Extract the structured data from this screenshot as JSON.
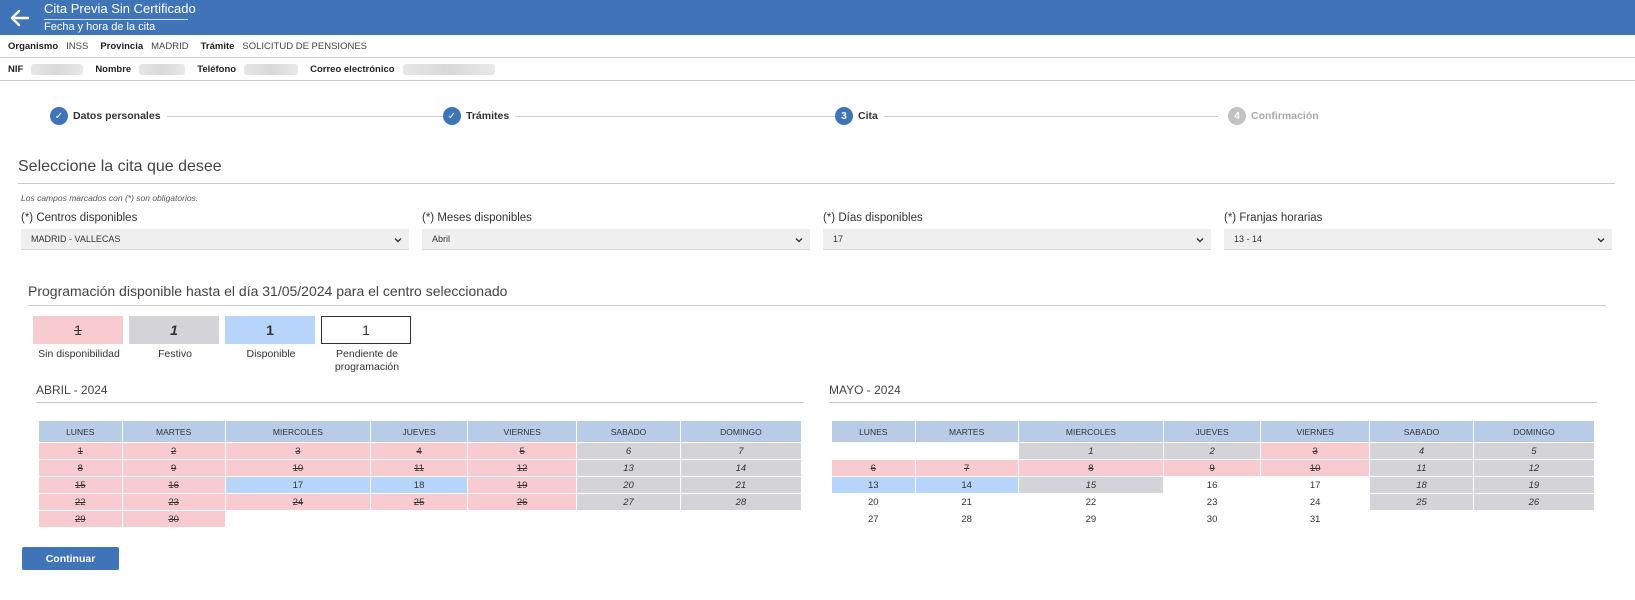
{
  "header": {
    "title": "Cita Previa Sin Certificado",
    "subtitle": "Fecha y hora de la cita"
  },
  "info1": [
    {
      "k": "Organismo",
      "v": "INSS"
    },
    {
      "k": "Provincia",
      "v": "MADRID"
    },
    {
      "k": "Trámite",
      "v": "SOLICITUD DE PENSIONES"
    }
  ],
  "info2": [
    {
      "k": "NIF"
    },
    {
      "k": "Nombre"
    },
    {
      "k": "Teléfono"
    },
    {
      "k": "Correo electrónico"
    }
  ],
  "steps": [
    {
      "num": "✓",
      "label": "Datos personales"
    },
    {
      "num": "✓",
      "label": "Trámites"
    },
    {
      "num": "3",
      "label": "Cita"
    },
    {
      "num": "4",
      "label": "Confirmación"
    }
  ],
  "section_title": "Seleccione la cita que desee",
  "required_note": "Los campos marcados con (*) son obligatorios.",
  "fields": [
    {
      "label": "(*) Centros disponibles",
      "value": "MADRID - VALLECAS"
    },
    {
      "label": "(*) Meses disponibles",
      "value": "Abril"
    },
    {
      "label": "(*) Días disponibles",
      "value": "17"
    },
    {
      "label": "(*) Franjas horarias",
      "value": "13 - 14"
    }
  ],
  "prog_title": "Programación disponible hasta el día 31/05/2024 para el centro seleccionado",
  "legend": [
    {
      "num": "1",
      "label": "Sin disponibilidad",
      "color": "#f8cbd0"
    },
    {
      "num": "1",
      "label": "Festivo",
      "color": "#d4d4d8"
    },
    {
      "num": "1",
      "label": "Disponible",
      "color": "#b7d5fb"
    },
    {
      "num": "1",
      "label": "Pendiente de programación",
      "color": "#ffffff"
    }
  ],
  "weekdays": [
    "LUNES",
    "MARTES",
    "MIERCOLES",
    "JUEVES",
    "VIERNES",
    "SABADO",
    "DOMINGO"
  ],
  "calendars": [
    {
      "title": "ABRIL - 2024",
      "weeks": [
        [
          {
            "d": "1",
            "s": "na"
          },
          {
            "d": "2",
            "s": "na"
          },
          {
            "d": "3",
            "s": "na"
          },
          {
            "d": "4",
            "s": "na"
          },
          {
            "d": "5",
            "s": "na"
          },
          {
            "d": "6",
            "s": "hol"
          },
          {
            "d": "7",
            "s": "hol"
          }
        ],
        [
          {
            "d": "8",
            "s": "na"
          },
          {
            "d": "9",
            "s": "na"
          },
          {
            "d": "10",
            "s": "na"
          },
          {
            "d": "11",
            "s": "na"
          },
          {
            "d": "12",
            "s": "na"
          },
          {
            "d": "13",
            "s": "hol"
          },
          {
            "d": "14",
            "s": "hol"
          }
        ],
        [
          {
            "d": "15",
            "s": "na"
          },
          {
            "d": "16",
            "s": "na"
          },
          {
            "d": "17",
            "s": "av"
          },
          {
            "d": "18",
            "s": "av"
          },
          {
            "d": "19",
            "s": "na"
          },
          {
            "d": "20",
            "s": "hol"
          },
          {
            "d": "21",
            "s": "hol"
          }
        ],
        [
          {
            "d": "22",
            "s": "na"
          },
          {
            "d": "23",
            "s": "na"
          },
          {
            "d": "24",
            "s": "na"
          },
          {
            "d": "25",
            "s": "na"
          },
          {
            "d": "26",
            "s": "na"
          },
          {
            "d": "27",
            "s": "hol"
          },
          {
            "d": "28",
            "s": "hol"
          }
        ],
        [
          {
            "d": "29",
            "s": "na"
          },
          {
            "d": "30",
            "s": "na"
          },
          {
            "d": "",
            "s": "empty"
          },
          {
            "d": "",
            "s": "empty"
          },
          {
            "d": "",
            "s": "empty"
          },
          {
            "d": "",
            "s": "empty"
          },
          {
            "d": "",
            "s": "empty"
          }
        ]
      ]
    },
    {
      "title": "MAYO - 2024",
      "weeks": [
        [
          {
            "d": "",
            "s": "empty"
          },
          {
            "d": "",
            "s": "empty"
          },
          {
            "d": "1",
            "s": "hol"
          },
          {
            "d": "2",
            "s": "hol"
          },
          {
            "d": "3",
            "s": "na"
          },
          {
            "d": "4",
            "s": "hol"
          },
          {
            "d": "5",
            "s": "hol"
          }
        ],
        [
          {
            "d": "6",
            "s": "na"
          },
          {
            "d": "7",
            "s": "na"
          },
          {
            "d": "8",
            "s": "na"
          },
          {
            "d": "9",
            "s": "na"
          },
          {
            "d": "10",
            "s": "na"
          },
          {
            "d": "11",
            "s": "hol"
          },
          {
            "d": "12",
            "s": "hol"
          }
        ],
        [
          {
            "d": "13",
            "s": "av"
          },
          {
            "d": "14",
            "s": "av"
          },
          {
            "d": "15",
            "s": "hol"
          },
          {
            "d": "16",
            "s": "pend"
          },
          {
            "d": "17",
            "s": "pend"
          },
          {
            "d": "18",
            "s": "hol"
          },
          {
            "d": "19",
            "s": "hol"
          }
        ],
        [
          {
            "d": "20",
            "s": "pend"
          },
          {
            "d": "21",
            "s": "pend"
          },
          {
            "d": "22",
            "s": "pend"
          },
          {
            "d": "23",
            "s": "pend"
          },
          {
            "d": "24",
            "s": "pend"
          },
          {
            "d": "25",
            "s": "hol"
          },
          {
            "d": "26",
            "s": "hol"
          }
        ],
        [
          {
            "d": "27",
            "s": "pend"
          },
          {
            "d": "28",
            "s": "pend"
          },
          {
            "d": "29",
            "s": "pend"
          },
          {
            "d": "30",
            "s": "pend"
          },
          {
            "d": "31",
            "s": "pend"
          },
          {
            "d": "",
            "s": "empty"
          },
          {
            "d": "",
            "s": "empty"
          }
        ]
      ]
    }
  ],
  "continue_label": "Continuar"
}
